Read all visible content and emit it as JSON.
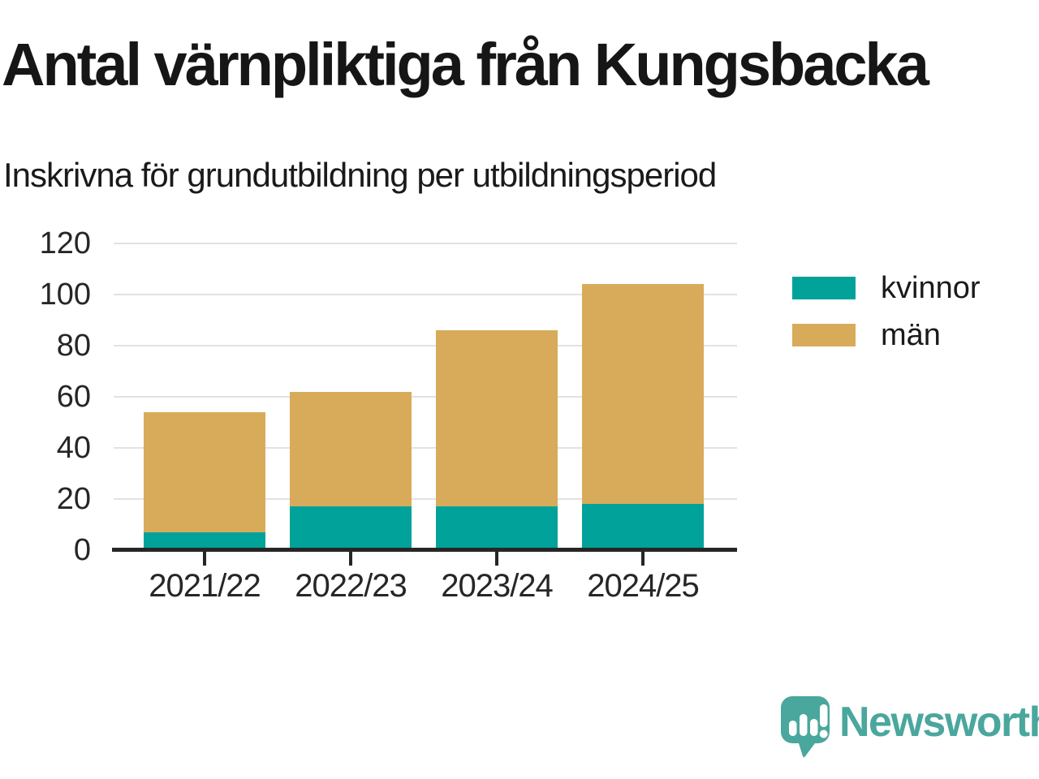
{
  "chart_data": {
    "type": "bar",
    "stacked": true,
    "title": "Antal värnpliktiga från Kungsbacka",
    "subtitle": "Inskrivna för grundutbildning per utbildningsperiod",
    "categories": [
      "2021/22",
      "2022/23",
      "2023/24",
      "2024/25"
    ],
    "series": [
      {
        "name": "kvinnor",
        "color": "#00a29a",
        "values": [
          7,
          17,
          17,
          18
        ]
      },
      {
        "name": "män",
        "color": "#d8ab5a",
        "values": [
          47,
          45,
          69,
          86
        ]
      }
    ],
    "totals": [
      54,
      62,
      86,
      104
    ],
    "xlabel": "",
    "ylabel": "",
    "ylim": [
      0,
      120
    ],
    "yticks": [
      0,
      20,
      40,
      60,
      80,
      100,
      120
    ],
    "grid": true,
    "legend_position": "right"
  },
  "footer": {
    "brand": "Newsworthy",
    "brand_color": "#4aa79d",
    "logo_icon": "speech-bubble-bar-chart-exclamation"
  }
}
